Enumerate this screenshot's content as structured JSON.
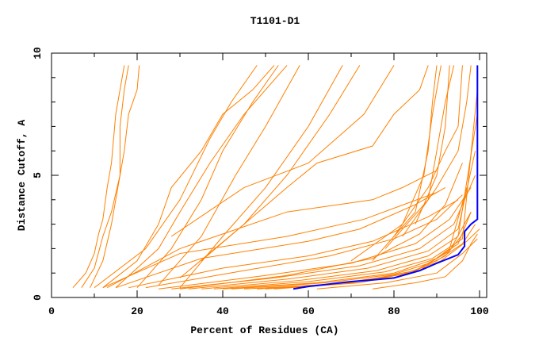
{
  "chart_data": {
    "type": "line",
    "title": "T1101-D1",
    "xlabel": "Percent of Residues (CA)",
    "ylabel": "Distance Cutoff, A",
    "xlim": [
      0,
      101.5
    ],
    "ylim": [
      0,
      10
    ],
    "xticks": [
      0,
      20,
      40,
      60,
      80,
      100
    ],
    "yticks": [
      0,
      5,
      10
    ],
    "grid": false,
    "colors": {
      "others": "#ff8000",
      "highlight": "#0000ff"
    },
    "highlight_series": [
      [
        56.5,
        0.35
      ],
      [
        60,
        0.45
      ],
      [
        65,
        0.55
      ],
      [
        70,
        0.65
      ],
      [
        75,
        0.72
      ],
      [
        80,
        0.8
      ],
      [
        82,
        0.9
      ],
      [
        86,
        1.1
      ],
      [
        90,
        1.4
      ],
      [
        95,
        1.75
      ],
      [
        96.5,
        2.1
      ],
      [
        96.5,
        2.7
      ],
      [
        98,
        3.0
      ],
      [
        99.5,
        3.2
      ],
      [
        99.5,
        9.5
      ]
    ],
    "series": [
      [
        [
          5,
          0.4
        ],
        [
          8,
          1
        ],
        [
          10,
          1.8
        ],
        [
          11,
          2.6
        ],
        [
          12,
          3.2
        ],
        [
          13,
          4.5
        ],
        [
          14,
          5.5
        ],
        [
          15,
          7.5
        ],
        [
          16,
          8.5
        ],
        [
          17,
          9.5
        ]
      ],
      [
        [
          7,
          0.4
        ],
        [
          10,
          1.2
        ],
        [
          12,
          2.5
        ],
        [
          14,
          3.5
        ],
        [
          16,
          5
        ],
        [
          17,
          6
        ],
        [
          18,
          7.5
        ],
        [
          20,
          8.5
        ],
        [
          20.5,
          9.5
        ]
      ],
      [
        [
          9,
          0.4
        ],
        [
          12,
          1.5
        ],
        [
          14,
          3
        ],
        [
          16,
          5
        ],
        [
          16,
          7
        ],
        [
          17,
          8.5
        ],
        [
          18,
          9.5
        ]
      ],
      [
        [
          12,
          0.4
        ],
        [
          20,
          1.5
        ],
        [
          25,
          3
        ],
        [
          28,
          4.5
        ],
        [
          35,
          6
        ],
        [
          40,
          7.5
        ],
        [
          47,
          8.5
        ],
        [
          52,
          9.5
        ]
      ],
      [
        [
          10,
          0.4
        ],
        [
          22,
          2
        ],
        [
          30,
          4
        ],
        [
          37,
          6.5
        ],
        [
          42,
          8
        ],
        [
          48,
          9.5
        ]
      ],
      [
        [
          15,
          0.4
        ],
        [
          25,
          2
        ],
        [
          30,
          3.5
        ],
        [
          37,
          5.5
        ],
        [
          45,
          7.5
        ],
        [
          55,
          9.5
        ]
      ],
      [
        [
          20,
          0.4
        ],
        [
          28,
          2
        ],
        [
          35,
          4
        ],
        [
          40,
          6
        ],
        [
          47,
          8
        ],
        [
          53,
          9.5
        ]
      ],
      [
        [
          25,
          0.5
        ],
        [
          35,
          2.5
        ],
        [
          43,
          5
        ],
        [
          50,
          7
        ],
        [
          58,
          9.5
        ]
      ],
      [
        [
          30,
          0.4
        ],
        [
          40,
          2.5
        ],
        [
          50,
          4.5
        ],
        [
          60,
          7
        ],
        [
          68,
          9.5
        ]
      ],
      [
        [
          30,
          0.8
        ],
        [
          45,
          3
        ],
        [
          55,
          5
        ],
        [
          65,
          7.5
        ],
        [
          72,
          9.5
        ]
      ],
      [
        [
          28,
          2.5
        ],
        [
          45,
          4.5
        ],
        [
          60,
          5.5
        ],
        [
          73,
          7.5
        ],
        [
          80,
          9.5
        ]
      ],
      [
        [
          35,
          1.5
        ],
        [
          55,
          4.5
        ],
        [
          62,
          5.5
        ],
        [
          75,
          6.2
        ],
        [
          80,
          7.5
        ],
        [
          86,
          8.5
        ],
        [
          88,
          9.5
        ]
      ],
      [
        [
          13,
          0.4
        ],
        [
          30,
          2
        ],
        [
          55,
          3.5
        ],
        [
          75,
          4
        ],
        [
          82,
          4.5
        ],
        [
          90,
          5.2
        ]
      ],
      [
        [
          12,
          0.4
        ],
        [
          30,
          1.8
        ],
        [
          55,
          2.5
        ],
        [
          73,
          3.2
        ],
        [
          90,
          4.3
        ]
      ],
      [
        [
          15,
          0.4
        ],
        [
          35,
          1.6
        ],
        [
          60,
          2.3
        ],
        [
          72,
          2.8
        ],
        [
          85,
          3.8
        ],
        [
          92,
          4.5
        ]
      ],
      [
        [
          18,
          0.4
        ],
        [
          40,
          1.2
        ],
        [
          60,
          1.7
        ],
        [
          75,
          2.3
        ],
        [
          88,
          3.3
        ],
        [
          95,
          4
        ]
      ],
      [
        [
          22,
          0.4
        ],
        [
          45,
          1.1
        ],
        [
          65,
          1.7
        ],
        [
          80,
          2.4
        ],
        [
          90,
          3.2
        ],
        [
          96,
          4.2
        ]
      ],
      [
        [
          25,
          0.35
        ],
        [
          50,
          0.9
        ],
        [
          70,
          1.4
        ],
        [
          85,
          2.2
        ],
        [
          93,
          3.2
        ],
        [
          98,
          4.5
        ]
      ],
      [
        [
          28,
          0.35
        ],
        [
          52,
          0.8
        ],
        [
          72,
          1.3
        ],
        [
          86,
          2
        ],
        [
          94,
          3
        ],
        [
          99,
          5
        ]
      ],
      [
        [
          32,
          0.35
        ],
        [
          55,
          0.75
        ],
        [
          74,
          1.2
        ],
        [
          88,
          1.9
        ],
        [
          95,
          2.8
        ],
        [
          99,
          6
        ]
      ],
      [
        [
          35,
          0.35
        ],
        [
          58,
          0.7
        ],
        [
          76,
          1.1
        ],
        [
          88,
          1.7
        ],
        [
          95,
          2.5
        ],
        [
          99.5,
          7.5
        ]
      ],
      [
        [
          38,
          0.35
        ],
        [
          60,
          0.65
        ],
        [
          78,
          1.05
        ],
        [
          89,
          1.6
        ],
        [
          96,
          2.4
        ],
        [
          99.5,
          8.5
        ]
      ],
      [
        [
          40,
          0.35
        ],
        [
          62,
          0.6
        ],
        [
          80,
          1
        ],
        [
          90,
          1.6
        ],
        [
          95,
          2.2
        ],
        [
          98,
          3.5
        ]
      ],
      [
        [
          42,
          0.35
        ],
        [
          64,
          0.6
        ],
        [
          80,
          0.95
        ],
        [
          90,
          1.5
        ],
        [
          96,
          2.2
        ],
        [
          99,
          3
        ]
      ],
      [
        [
          45,
          0.35
        ],
        [
          66,
          0.55
        ],
        [
          82,
          0.95
        ],
        [
          91,
          1.5
        ],
        [
          97,
          2.3
        ],
        [
          100,
          2.8
        ]
      ],
      [
        [
          48,
          0.35
        ],
        [
          68,
          0.55
        ],
        [
          84,
          1
        ],
        [
          92,
          1.7
        ],
        [
          97,
          2.8
        ]
      ],
      [
        [
          50,
          0.35
        ],
        [
          70,
          0.6
        ],
        [
          85,
          1.1
        ],
        [
          93,
          1.9
        ],
        [
          98,
          3.5
        ]
      ],
      [
        [
          52,
          0.35
        ],
        [
          72,
          0.6
        ],
        [
          86,
          1.1
        ],
        [
          93,
          2
        ],
        [
          97,
          4.5
        ]
      ],
      [
        [
          30,
          0.35
        ],
        [
          55,
          0.9
        ],
        [
          75,
          1.6
        ],
        [
          86,
          2.6
        ],
        [
          92,
          3.8
        ],
        [
          96,
          5.5
        ]
      ],
      [
        [
          75,
          0.35
        ],
        [
          85,
          0.6
        ],
        [
          92,
          0.85
        ],
        [
          96,
          1.5
        ],
        [
          98,
          2.2
        ],
        [
          99.5,
          2.6
        ]
      ],
      [
        [
          62,
          0.35
        ],
        [
          78,
          0.6
        ],
        [
          90,
          1
        ],
        [
          96,
          1.8
        ],
        [
          99.5,
          2.4
        ]
      ],
      [
        [
          85,
          3
        ],
        [
          90,
          5
        ],
        [
          92,
          7
        ],
        [
          93,
          9.5
        ]
      ],
      [
        [
          80,
          2.5
        ],
        [
          88,
          4.5
        ],
        [
          92,
          6
        ],
        [
          95,
          7
        ],
        [
          96,
          9.5
        ]
      ],
      [
        [
          78,
          2
        ],
        [
          88,
          4
        ],
        [
          90,
          6
        ],
        [
          92,
          8
        ],
        [
          94,
          9.5
        ]
      ],
      [
        [
          75,
          1.5
        ],
        [
          85,
          3.5
        ],
        [
          88,
          6
        ],
        [
          89,
          8
        ],
        [
          90,
          9.5
        ]
      ],
      [
        [
          70,
          1.5
        ],
        [
          82,
          3
        ],
        [
          87,
          5
        ],
        [
          89,
          7.5
        ],
        [
          91,
          9.5
        ]
      ],
      [
        [
          82,
          2.5
        ],
        [
          90,
          4.5
        ],
        [
          95,
          6
        ],
        [
          97,
          8
        ],
        [
          98,
          9.5
        ]
      ]
    ]
  }
}
